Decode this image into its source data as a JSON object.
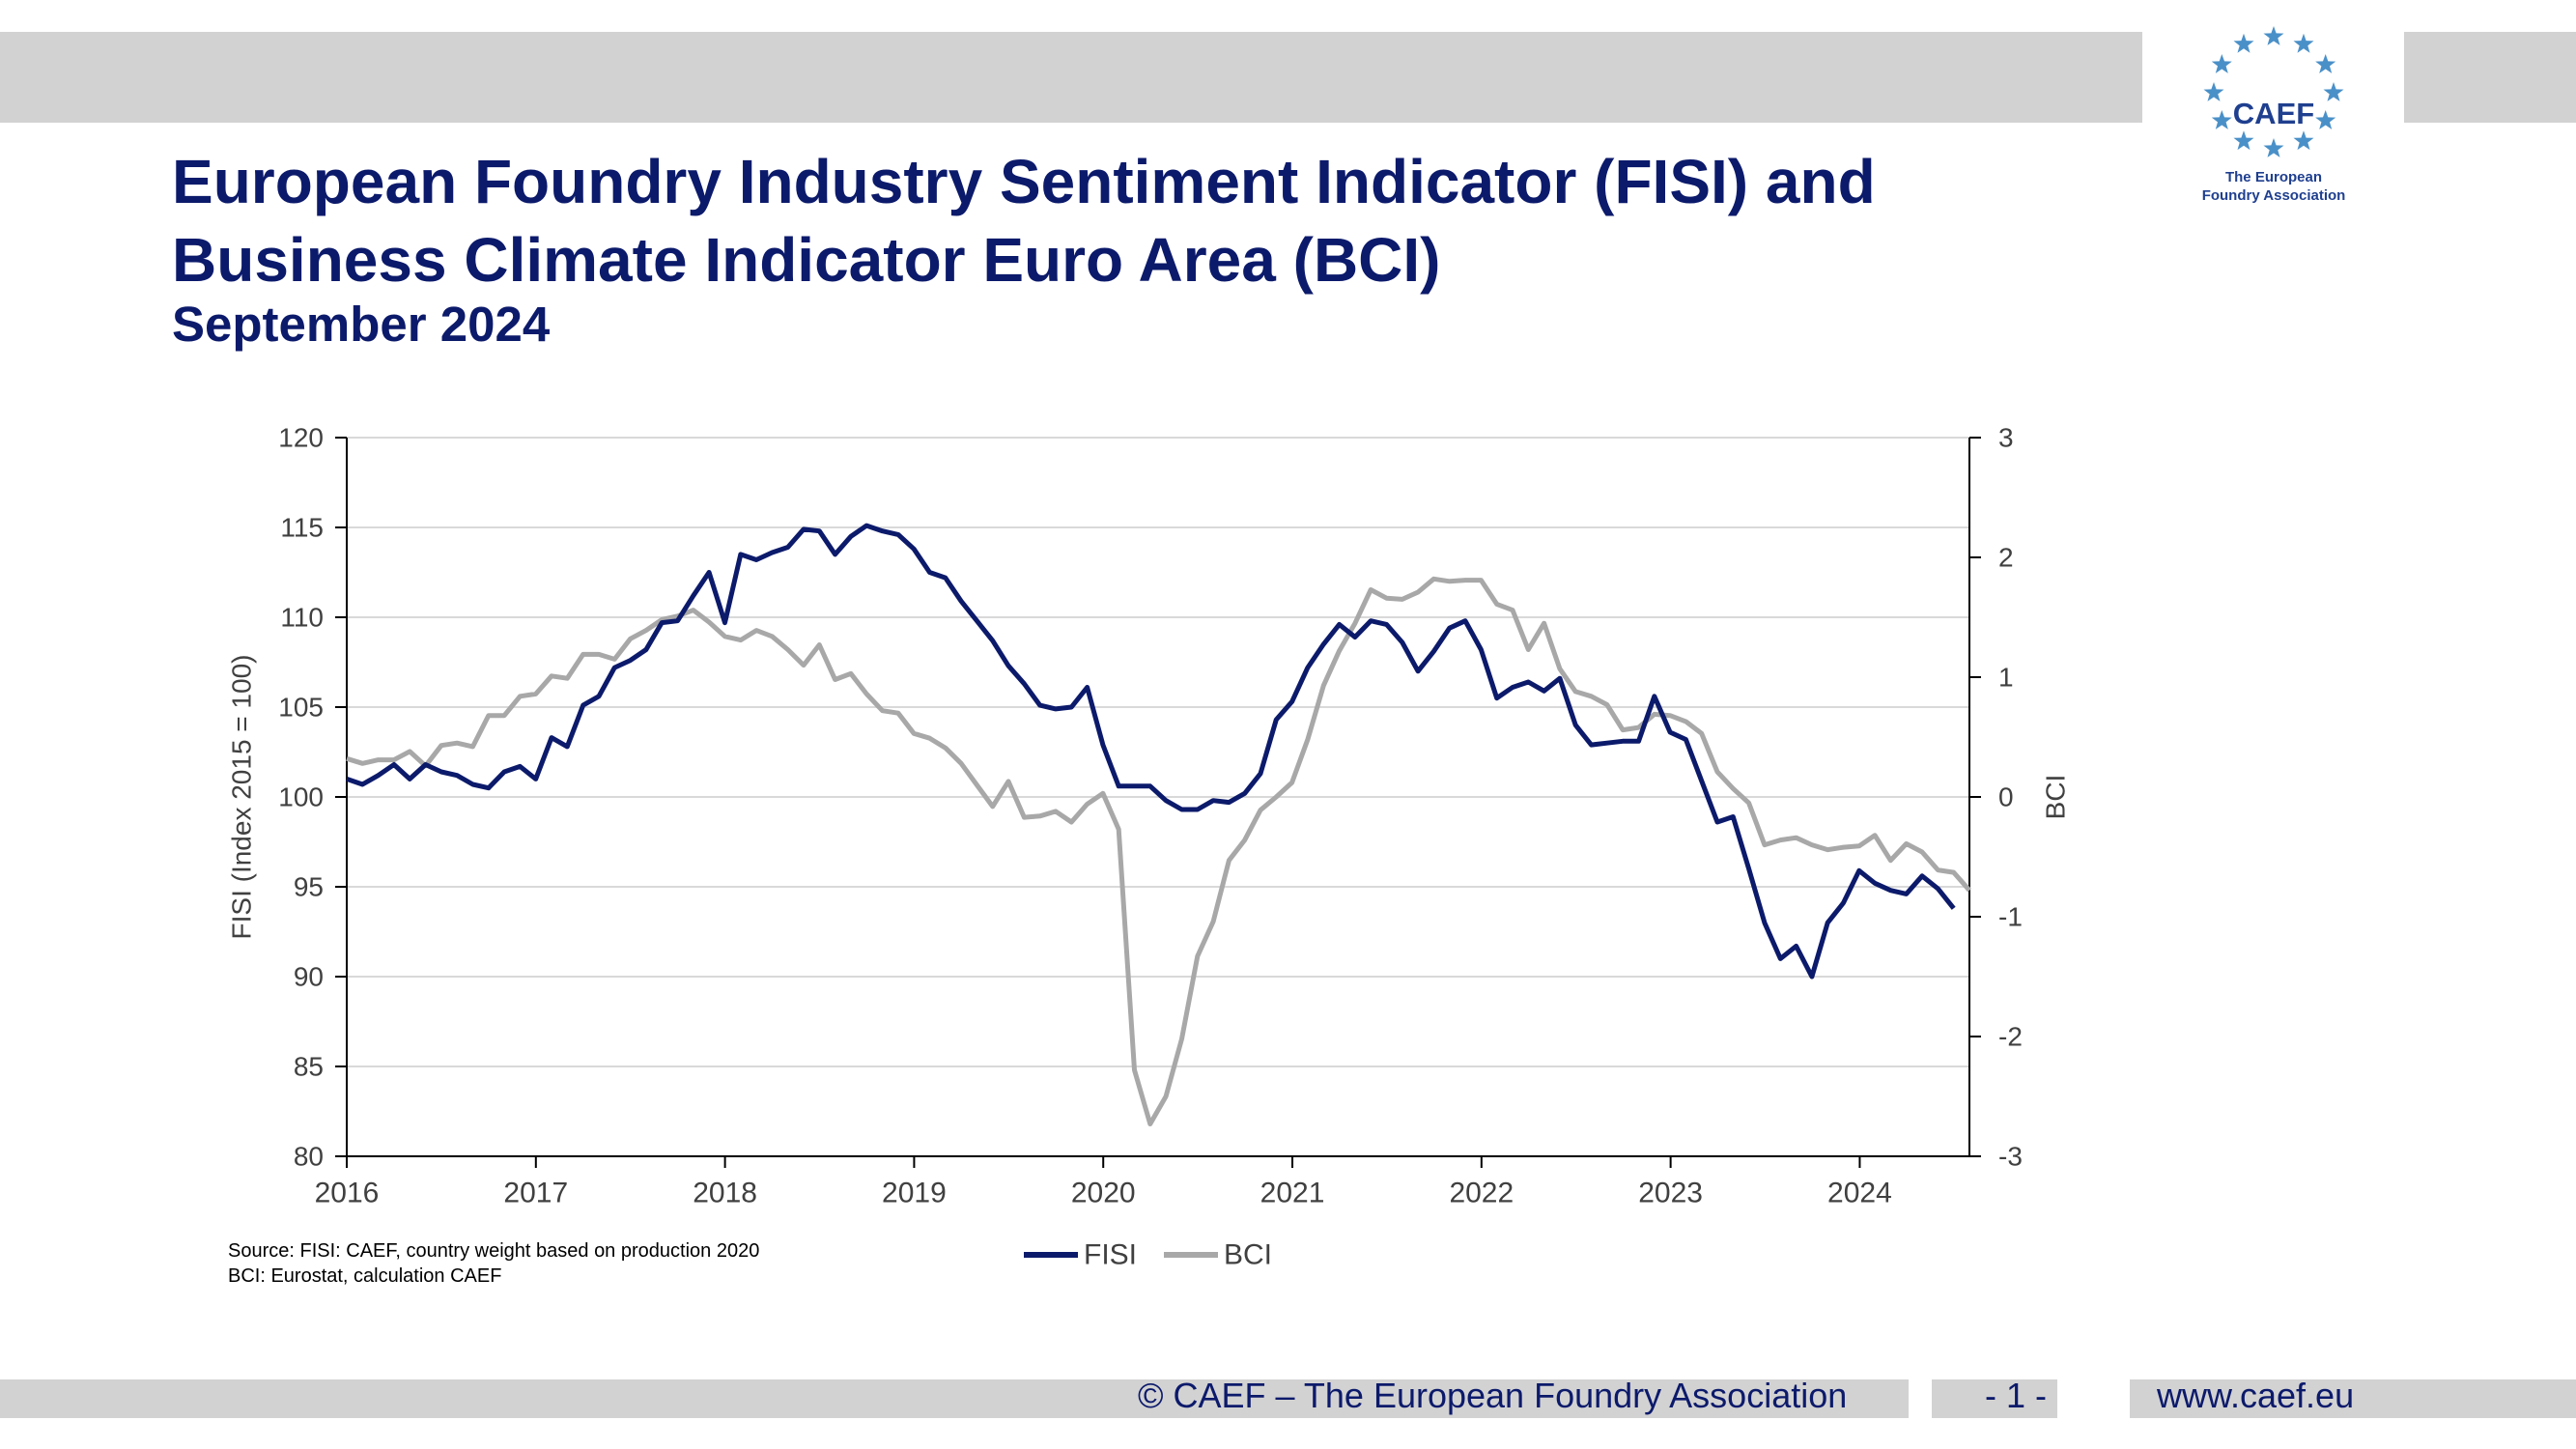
{
  "header": {
    "title_line1": "European Foundry Industry Sentiment Indicator (FISI) and",
    "title_line2": "Business Climate Indicator Euro Area (BCI)",
    "subtitle": "September 2024"
  },
  "logo": {
    "name": "CAEF",
    "sub_line1": "The European",
    "sub_line2": "Foundry Association",
    "star_color": "#4a90c8"
  },
  "chart_data": {
    "type": "line",
    "ylabel": "FISI (Index 2015 = 100)",
    "y2label": "BCI",
    "ylim": [
      80,
      120
    ],
    "y2lim": [
      -3,
      3
    ],
    "yticks": [
      "80",
      "85",
      "90",
      "95",
      "100",
      "105",
      "110",
      "115",
      "120"
    ],
    "y2ticks": [
      "-3",
      "-2",
      "-1",
      "0",
      "1",
      "2",
      "3"
    ],
    "xticks": [
      "2016",
      "2017",
      "2018",
      "2019",
      "2020",
      "2021",
      "2022",
      "2023",
      "2024"
    ],
    "xlim": [
      2016,
      2024.58
    ],
    "grid": true,
    "legend_position": "bottom-center",
    "series": [
      {
        "name": "FISI",
        "axis": "left",
        "color": "#0c1a6b",
        "start": 2016,
        "step": 0.0833,
        "values": [
          101.0,
          100.7,
          101.2,
          101.8,
          101.0,
          101.8,
          101.4,
          101.2,
          100.7,
          100.5,
          101.4,
          101.7,
          101.0,
          103.3,
          102.8,
          105.1,
          105.6,
          107.2,
          107.6,
          108.2,
          109.7,
          109.8,
          111.2,
          112.5,
          109.7,
          113.5,
          113.2,
          113.6,
          113.9,
          114.9,
          114.8,
          113.5,
          114.5,
          115.1,
          114.8,
          114.6,
          113.8,
          112.5,
          112.2,
          110.9,
          109.8,
          108.7,
          107.3,
          106.3,
          105.1,
          104.9,
          105.0,
          106.1,
          102.9,
          100.6,
          100.6,
          100.6,
          99.8,
          99.3,
          99.3,
          99.8,
          99.7,
          100.2,
          101.3,
          104.3,
          105.3,
          107.2,
          108.5,
          109.6,
          108.9,
          109.8,
          109.6,
          108.6,
          107.0,
          108.1,
          109.4,
          109.8,
          108.2,
          105.5,
          106.1,
          106.4,
          105.9,
          106.6,
          104.0,
          102.9,
          103.0,
          103.1,
          103.1,
          105.6,
          103.6,
          103.2,
          100.9,
          98.6,
          98.9,
          96.0,
          93.0,
          91.0,
          91.7,
          90.0,
          93.0,
          94.1,
          95.9,
          95.2,
          94.8,
          94.6,
          95.6,
          94.9,
          93.8
        ]
      },
      {
        "name": "BCI",
        "axis": "right",
        "color": "#a8a8a8",
        "start": 2016,
        "step": 0.0833,
        "values": [
          0.32,
          0.28,
          0.31,
          0.31,
          0.38,
          0.26,
          0.43,
          0.45,
          0.42,
          0.68,
          0.68,
          0.84,
          0.86,
          1.01,
          0.99,
          1.19,
          1.19,
          1.15,
          1.32,
          1.39,
          1.48,
          1.51,
          1.56,
          1.46,
          1.34,
          1.31,
          1.39,
          1.34,
          1.23,
          1.1,
          1.27,
          0.98,
          1.03,
          0.86,
          0.72,
          0.7,
          0.53,
          0.49,
          0.41,
          0.28,
          0.1,
          -0.08,
          0.13,
          -0.17,
          -0.16,
          -0.12,
          -0.21,
          -0.06,
          0.03,
          -0.27,
          -2.28,
          -2.73,
          -2.5,
          -2.02,
          -1.33,
          -1.04,
          -0.53,
          -0.36,
          -0.11,
          0.0,
          0.12,
          0.48,
          0.93,
          1.22,
          1.45,
          1.73,
          1.66,
          1.65,
          1.71,
          1.82,
          1.8,
          1.81,
          1.81,
          1.61,
          1.56,
          1.23,
          1.45,
          1.07,
          0.88,
          0.84,
          0.77,
          0.56,
          0.58,
          0.69,
          0.68,
          0.63,
          0.53,
          0.21,
          0.07,
          -0.05,
          -0.4,
          -0.36,
          -0.34,
          -0.4,
          -0.44,
          -0.42,
          -0.41,
          -0.32,
          -0.53,
          -0.39,
          -0.46,
          -0.61,
          -0.63,
          -0.78
        ]
      }
    ]
  },
  "source": {
    "line1": "Source: FISI: CAEF, country weight based on production 2020",
    "line2": "BCI: Eurostat, calculation CAEF"
  },
  "footer": {
    "copyright": "© CAEF – The European Foundry Association",
    "page": "- 1 -",
    "url": "www.caef.eu"
  }
}
